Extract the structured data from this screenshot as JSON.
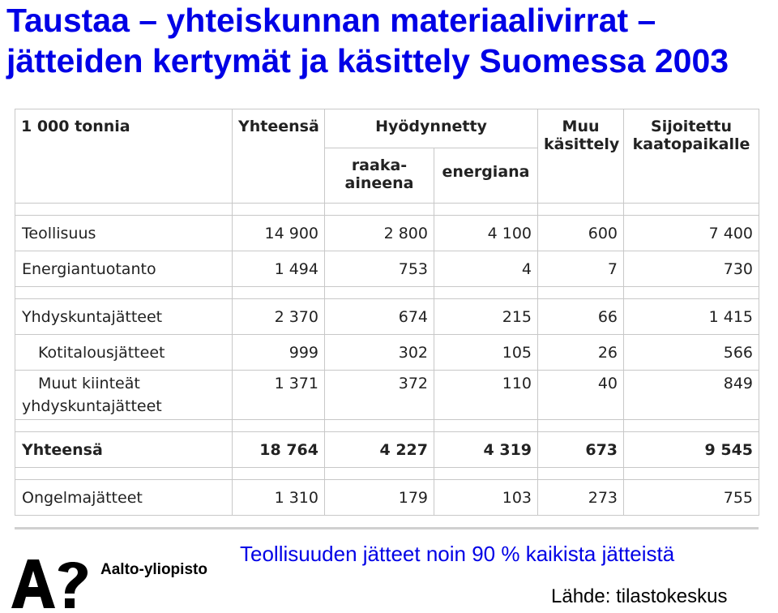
{
  "title": {
    "line1": "Taustaa – yhteiskunnan materiaalivirrat –",
    "line2": "jätteiden kertymät ja käsittely Suomessa 2003"
  },
  "table": {
    "unit": "1 000 tonnia",
    "col_total": "Yhteensä",
    "col_utilized": "Hyödynnetty",
    "col_raw": "raaka-",
    "col_raw2": "aineena",
    "col_energy": "energiana",
    "col_other": "Muu",
    "col_other2": "käsittely",
    "col_landfill": "Sijoitettu",
    "col_landfill2": "kaatopaikalle",
    "rows": [
      {
        "label": "Teollisuus",
        "total": "14 900",
        "raw": "2 800",
        "energy": "4 100",
        "other": "600",
        "landfill": "7 400"
      },
      {
        "label": "Energiantuotanto",
        "total": "1 494",
        "raw": "753",
        "energy": "4",
        "other": "7",
        "landfill": "730"
      },
      {
        "label": "Yhdyskuntajätteet",
        "total": "2 370",
        "raw": "674",
        "energy": "215",
        "other": "66",
        "landfill": "1 415"
      },
      {
        "label": "Kotitalousjätteet",
        "total": "999",
        "raw": "302",
        "energy": "105",
        "other": "26",
        "landfill": "566"
      },
      {
        "label": "Muut kiinteät",
        "label2": "yhdyskuntajätteet",
        "total": "1 371",
        "raw": "372",
        "energy": "110",
        "other": "40",
        "landfill": "849"
      },
      {
        "label": "Yhteensä",
        "total": "18 764",
        "raw": "4 227",
        "energy": "4 319",
        "other": "673",
        "landfill": "9 545"
      },
      {
        "label": "Ongelmajätteet",
        "total": "1 310",
        "raw": "179",
        "energy": "103",
        "other": "273",
        "landfill": "755"
      }
    ]
  },
  "footer": {
    "logo_text": "Aalto-yliopisto",
    "note": "Teollisuuden jätteet noin 90 % kaikista jätteistä",
    "source": "Lähde: tilastokeskus"
  },
  "colors": {
    "title": "#0000e6",
    "grid": "#c8c8c8"
  }
}
